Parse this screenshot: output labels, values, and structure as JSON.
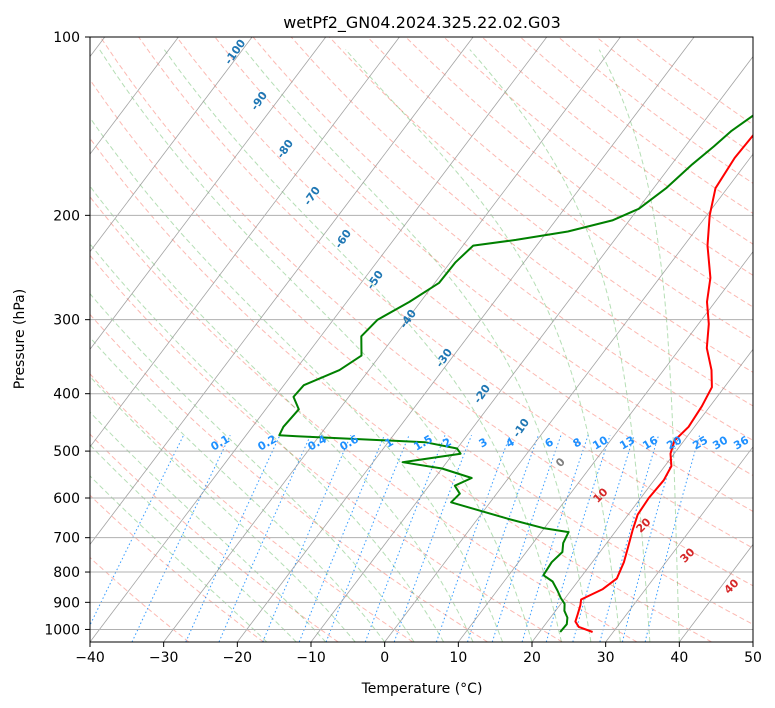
{
  "chart_data": {
    "type": "line",
    "title": "wetPf2_GN04.2024.325.22.02.G03",
    "xlabel": "Temperature (°C)",
    "ylabel": "Pressure (hPa)",
    "xlim": [
      -40,
      50
    ],
    "ylim": [
      1050,
      100
    ],
    "y_scale": "log",
    "grid": true,
    "x_ticks": [
      -40,
      -30,
      -20,
      -10,
      0,
      10,
      20,
      30,
      40,
      50
    ],
    "y_ticks": [
      100,
      200,
      300,
      400,
      500,
      600,
      700,
      800,
      900,
      1000
    ],
    "x_tick_labels": [
      "−40",
      "−30",
      "−20",
      "−10",
      "0",
      "10",
      "20",
      "30",
      "40",
      "50"
    ],
    "y_tick_labels": [
      "100",
      "200",
      "300",
      "400",
      "500",
      "600",
      "700",
      "800",
      "900",
      "1000"
    ],
    "series": [
      {
        "role": "temperature",
        "color": "#ff0000",
        "points": [
          [
            27.2,
            1010
          ],
          [
            24.8,
            990
          ],
          [
            23.8,
            970
          ],
          [
            23.4,
            945
          ],
          [
            22.8,
            910
          ],
          [
            22.3,
            890
          ],
          [
            24.2,
            855
          ],
          [
            25.0,
            820
          ],
          [
            24.3,
            770
          ],
          [
            23.4,
            730
          ],
          [
            22.2,
            680
          ],
          [
            21.3,
            640
          ],
          [
            21.1,
            600
          ],
          [
            21.3,
            560
          ],
          [
            20.9,
            530
          ],
          [
            19.5,
            505
          ],
          [
            18.7,
            480
          ],
          [
            19.2,
            455
          ],
          [
            18.9,
            420
          ],
          [
            18.3,
            390
          ],
          [
            16.5,
            365
          ],
          [
            13.6,
            335
          ],
          [
            11.4,
            305
          ],
          [
            8.9,
            280
          ],
          [
            6.9,
            255
          ],
          [
            3.2,
            225
          ],
          [
            0.4,
            200
          ],
          [
            -1.6,
            180
          ],
          [
            -2.1,
            160
          ],
          [
            -1.9,
            145
          ],
          [
            -2.2,
            130
          ],
          [
            -3.3,
            120
          ],
          [
            -3.7,
            115
          ],
          [
            -2.4,
            109
          ],
          [
            0.1,
            104
          ],
          [
            1.1,
            100
          ]
        ]
      },
      {
        "role": "dewpoint",
        "color": "#008000",
        "points": [
          [
            22.8,
            1010
          ],
          [
            22.9,
            980
          ],
          [
            22.3,
            955
          ],
          [
            21.2,
            930
          ],
          [
            20.5,
            905
          ],
          [
            19.4,
            885
          ],
          [
            18.2,
            860
          ],
          [
            16.6,
            830
          ],
          [
            14.7,
            810
          ],
          [
            14.5,
            770
          ],
          [
            14.9,
            740
          ],
          [
            14.1,
            715
          ],
          [
            13.7,
            685
          ],
          [
            10.0,
            675
          ],
          [
            4.0,
            650
          ],
          [
            -5.3,
            610
          ],
          [
            -5.0,
            590
          ],
          [
            -6.5,
            572
          ],
          [
            -5.0,
            555
          ],
          [
            -10.0,
            535
          ],
          [
            -16.0,
            522
          ],
          [
            -9.0,
            505
          ],
          [
            -10.0,
            495
          ],
          [
            -15.0,
            483
          ],
          [
            -33.0,
            472
          ],
          [
            -35.5,
            470
          ],
          [
            -35.8,
            455
          ],
          [
            -35.5,
            425
          ],
          [
            -37.5,
            405
          ],
          [
            -37.3,
            387
          ],
          [
            -34.0,
            365
          ],
          [
            -32.5,
            345
          ],
          [
            -34.5,
            320
          ],
          [
            -34.0,
            300
          ],
          [
            -31.5,
            280
          ],
          [
            -29.4,
            260
          ],
          [
            -29.3,
            240
          ],
          [
            -28.6,
            225
          ],
          [
            -23.4,
            220
          ],
          [
            -17.2,
            213
          ],
          [
            -12.3,
            204
          ],
          [
            -9.9,
            195
          ],
          [
            -8.3,
            180
          ],
          [
            -7.2,
            164
          ],
          [
            -6.1,
            153
          ],
          [
            -5.3,
            144
          ],
          [
            -3.5,
            133
          ],
          [
            -1.0,
            124
          ],
          [
            0.1,
            118
          ],
          [
            -0.6,
            112
          ],
          [
            -0.2,
            104
          ],
          [
            -0.4,
            100
          ]
        ]
      }
    ],
    "reference_lines": {
      "isotherm_spacing_c": 10,
      "dry_adiabat_color": "#fa8072",
      "moist_adiabat_color": "#2ca02c",
      "mixing_ratio_color": "#1e90ff",
      "isotherm_color": "#808080",
      "ozone_curve_color": "#d2b48c"
    },
    "height_labels": {
      "color": "#1f77b4",
      "values": [
        "-100",
        "-90",
        "-80",
        "-70",
        "-60",
        "-50",
        "-40",
        "-30",
        "-20",
        "-10"
      ]
    },
    "mixing_ratio_labels": {
      "color": "#1e90ff",
      "values": [
        "0.1",
        "0.2",
        "0.4",
        "0.6",
        "1",
        "1.5",
        "2",
        "3",
        "4",
        "6",
        "8",
        "10",
        "13",
        "16",
        "20",
        "25",
        "30",
        "36"
      ]
    },
    "isotherm_labels": {
      "values": [
        "0",
        "10",
        "20",
        "30",
        "40"
      ],
      "colors": [
        "#808080",
        "#d62728",
        "#d62728",
        "#d62728",
        "#d62728"
      ]
    }
  }
}
